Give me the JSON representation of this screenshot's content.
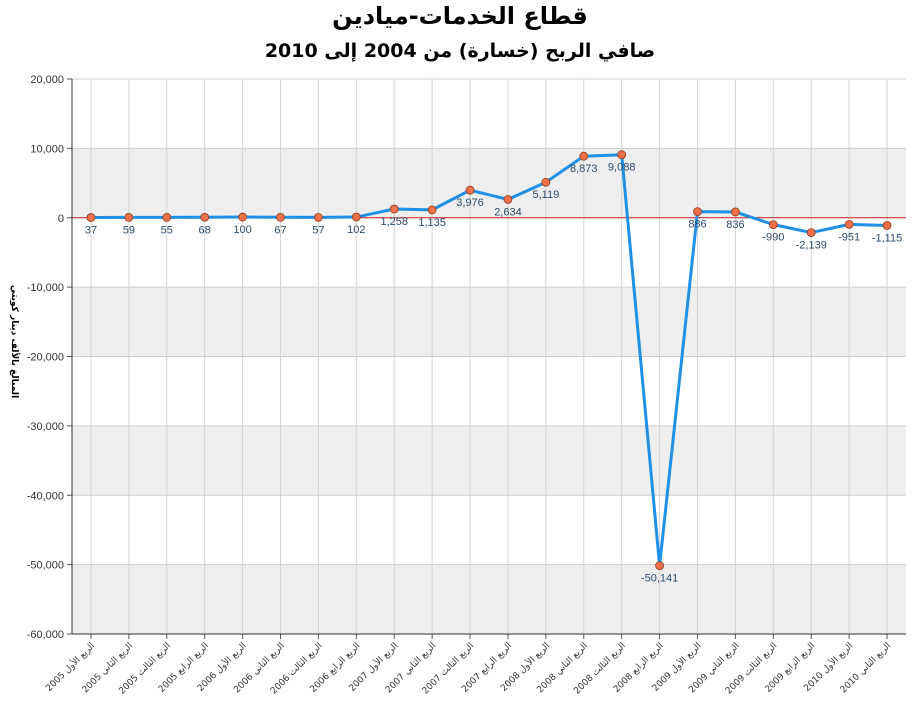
{
  "chart_data": {
    "type": "line",
    "title": "قطاع الخدمات-ميادين",
    "subtitle": "صافي الربح (خسارة) من 2004 إلى 2010",
    "ylabel": "المبالغ بالألف دينار كويتي",
    "ylim": [
      -60000,
      20000
    ],
    "yticks": [
      20000,
      10000,
      0,
      -10000,
      -20000,
      -30000,
      -40000,
      -50000,
      -60000
    ],
    "ytick_labels": [
      "20,000",
      "10,000",
      "0",
      "-10,000",
      "-20,000",
      "-30,000",
      "-40,000",
      "-50,000",
      "-60,000"
    ],
    "grid": true,
    "line_color": "#1e90e6",
    "marker_color": "#f0704a",
    "zero_line_color": "#cc2222",
    "band_color": "#eeeeee",
    "categories": [
      "الربع الأول 2005",
      "الربع الثاني 2005",
      "الربع الثالث 2005",
      "الربع الرابع 2005",
      "الربع الأول 2006",
      "الربع الثاني 2006",
      "الربع الثالث 2006",
      "الربع الرابع 2006",
      "الربع الأول 2007",
      "الربع الثاني 2007",
      "الربع الثالث 2007",
      "الربع الرابع 2007",
      "الربع الأول 2008",
      "الربع الثاني 2008",
      "الربع الثالث 2008",
      "الربع الرابع 2008",
      "الربع الأول 2009",
      "الربع الثاني 2009",
      "الربع الثالث 2009",
      "الربع الرابع 2009",
      "الربع الأول 2010",
      "الربع الثاني 2010"
    ],
    "values": [
      37,
      59,
      55,
      68,
      100,
      67,
      57,
      102,
      1258,
      1135,
      3976,
      2634,
      5119,
      8873,
      9088,
      -50141,
      886,
      836,
      -990,
      -2139,
      -951,
      -1115
    ],
    "value_labels": [
      "37",
      "59",
      "55",
      "68",
      "100",
      "67",
      "57",
      "102",
      "1,258",
      "1,135",
      "3,976",
      "2,634",
      "5,119",
      "8,873",
      "9,088",
      "-50,141",
      "886",
      "836",
      "-990",
      "-2,139",
      "-951",
      "-1,115"
    ]
  }
}
